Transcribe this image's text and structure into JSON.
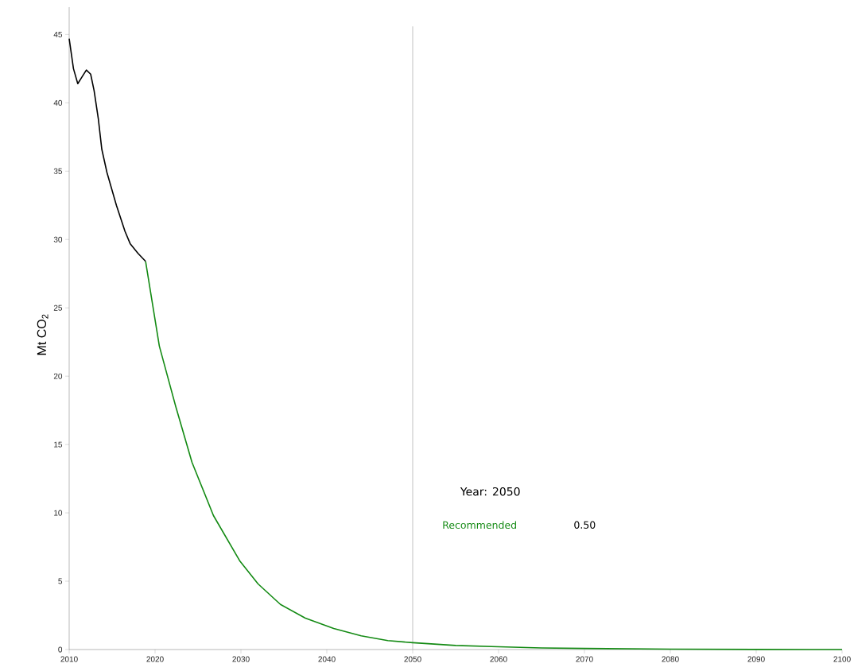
{
  "chart_data": {
    "type": "line",
    "ylabel": "Mt CO$_{2}$",
    "xlim": [
      2010,
      2100
    ],
    "xticks": [
      2010,
      2020,
      2030,
      2040,
      2050,
      2060,
      2070,
      2080,
      2090,
      2100
    ],
    "ylim": [
      0,
      47
    ],
    "yticks": [
      0,
      5,
      10,
      15,
      20,
      25,
      30,
      35,
      40,
      45
    ],
    "grid": false,
    "marker": "none",
    "line_style": "solid",
    "series": [
      {
        "color": "#000000",
        "x": [
          2010,
          2010.5,
          2011,
          2011.5,
          2012,
          2012.5,
          2012.9,
          2013.4,
          2013.8,
          2014.4,
          2015.5,
          2016.5,
          2017.1,
          2018,
          2018.9
        ],
        "values": [
          44.7,
          42.5,
          41.4,
          41.9,
          42.4,
          42.1,
          40.9,
          38.8,
          36.6,
          34.9,
          32.5,
          30.6,
          29.7,
          29.0,
          28.4
        ]
      },
      {
        "name": "Recommended",
        "color": "#138a13",
        "x": [
          2018.9,
          2020.5,
          2022.4,
          2024.3,
          2026.8,
          2029.9,
          2032,
          2034.6,
          2037.5,
          2040.8,
          2044,
          2047.1,
          2050,
          2055,
          2060,
          2065,
          2070,
          2080,
          2090,
          2100
        ],
        "values": [
          28.4,
          22.2,
          17.8,
          13.7,
          9.8,
          6.45,
          4.8,
          3.3,
          2.3,
          1.54,
          1.0,
          0.65,
          0.5,
          0.3,
          0.2,
          0.12,
          0.08,
          0.03,
          0.01,
          0.0
        ]
      }
    ],
    "ref_lines": [
      {
        "axis": "x",
        "value": 2050,
        "color": "#b0b0b0"
      }
    ],
    "annotations": [
      "Year: 2050",
      "0.50"
    ]
  }
}
